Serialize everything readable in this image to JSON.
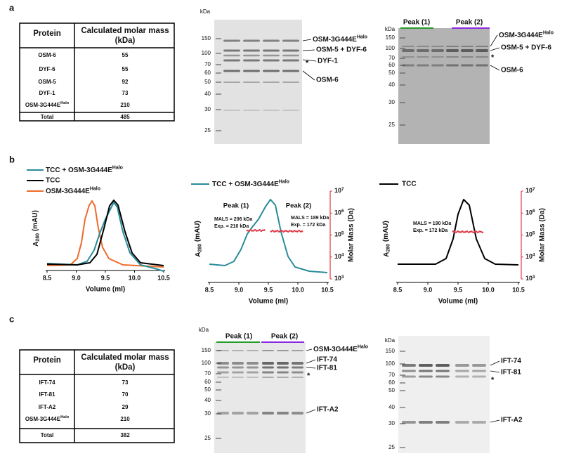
{
  "figure": {
    "a": {
      "label": "a",
      "table": {
        "header": [
          "Protein",
          "Calculated molar mass",
          "(kDa)"
        ],
        "rows": [
          [
            "OSM-6",
            55
          ],
          [
            "DYF-6",
            55
          ],
          [
            "OSM-5",
            92
          ],
          [
            "DYF-1",
            73
          ],
          [
            {
              "text": "OSM-3G444E",
              "sup": "Halo"
            },
            210
          ]
        ],
        "total": [
          "Total",
          485
        ]
      },
      "gel1": {
        "unit": "kDa",
        "markers": [
          150,
          100,
          70,
          60,
          50,
          40,
          30,
          25
        ],
        "bands": [
          {
            "text": "OSM-3G444E",
            "sup": "Halo"
          },
          "OSM-5 + DYF-6",
          "*",
          "DYF-1",
          "OSM-6"
        ]
      },
      "gel2": {
        "unit": "kDa",
        "peaks": [
          "Peak (1)",
          "Peak (2)"
        ],
        "markers": [
          150,
          100,
          70,
          60,
          50,
          40,
          30,
          25
        ],
        "bands": [
          {
            "text": "OSM-3G444E",
            "sup": "Halo"
          },
          "OSM-5 + DYF-6",
          "*",
          "OSM-6"
        ]
      }
    },
    "b": {
      "label": "b",
      "plot1": {
        "legend": [
          {
            "text": "TCC + OSM-3G444E",
            "sup": "Halo"
          },
          "TCC",
          {
            "text": "OSM-3G444E",
            "sup": "Halo"
          }
        ],
        "ylabel": {
          "text": "A",
          "sub": "280",
          "rest": " (mAU)"
        },
        "xlabel": "Volume (ml)",
        "xticks": [
          "8.5",
          "9.0",
          "9.5",
          "10.0",
          "10.5"
        ]
      },
      "plot2": {
        "legend": {
          "text": "TCC + OSM-3G444E",
          "sup": "Halo"
        },
        "peaks": [
          "Peak (1)",
          "Peak (2)"
        ],
        "mals": [
          [
            "MALS = 206 kDa",
            "Exp.  = 210 kDa"
          ],
          [
            "MALS = 189 kDa",
            "Exp.  = 172 kDa"
          ]
        ],
        "ylabel": {
          "text": "A",
          "sub": "280",
          "rest": " (mAU)"
        },
        "y2label": "Molar Mass (Da)",
        "y2ticks": [
          {
            "text": "10",
            "sup": "7"
          },
          {
            "text": "10",
            "sup": "6"
          },
          {
            "text": "10",
            "sup": "5"
          },
          {
            "text": "10",
            "sup": "4"
          },
          {
            "text": "10",
            "sup": "3"
          }
        ],
        "xlabel": "Volume (ml)",
        "xticks": [
          "8.5",
          "9.0",
          "9.5",
          "10.0",
          "10.5"
        ]
      },
      "plot3": {
        "legend": "TCC",
        "mals": [
          [
            "MALS = 190 kDa",
            "Exp.  = 172 kDa"
          ]
        ],
        "ylabel": {
          "text": "A",
          "sub": "280",
          "rest": " (mAU)"
        },
        "y2label": "Molar Mass (Da)",
        "y2ticks": [
          {
            "text": "10",
            "sup": "7"
          },
          {
            "text": "10",
            "sup": "6"
          },
          {
            "text": "10",
            "sup": "5"
          },
          {
            "text": "10",
            "sup": "4"
          },
          {
            "text": "10",
            "sup": "3"
          }
        ],
        "xlabel": "Volume (ml)",
        "xticks": [
          "8.5",
          "9.0",
          "9.5",
          "10.0",
          "10.5"
        ]
      }
    },
    "c": {
      "label": "c",
      "table": {
        "header": [
          "Protein",
          "Calculated molar mass",
          "(kDa)"
        ],
        "rows": [
          [
            "IFT-74",
            73
          ],
          [
            "IFT-81",
            70
          ],
          [
            "IFT-A2",
            29
          ],
          [
            {
              "text": "OSM-3G444E",
              "sup": "Halo"
            },
            210
          ]
        ],
        "total": [
          "Total",
          382
        ]
      },
      "gel3": {
        "unit": "kDa",
        "peaks": [
          "Peak (1)",
          "Peak (2)"
        ],
        "markers": [
          150,
          100,
          70,
          60,
          50,
          40,
          30,
          25
        ],
        "bands": [
          {
            "text": "OSM-3G444E",
            "sup": "Halo"
          },
          "IFT-74",
          "IFT-81",
          "*",
          "IFT-A2"
        ]
      },
      "gel4": {
        "unit": "kDa",
        "markers": [
          150,
          100,
          70,
          60,
          50,
          40,
          30,
          25
        ],
        "bands": [
          "IFT-74",
          "IFT-81",
          "*",
          "IFT-A2"
        ]
      }
    }
  }
}
